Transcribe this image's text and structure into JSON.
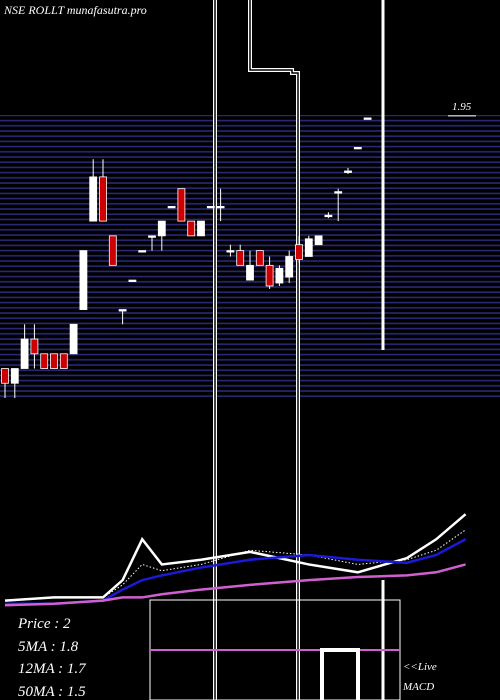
{
  "chart_data": [
    {
      "type": "candlestick",
      "title": "NSE ROLLT munafasutra.pro",
      "x": [
        0,
        1,
        2,
        3,
        4,
        5,
        6,
        7,
        8,
        9,
        10,
        11,
        12,
        13,
        14,
        15,
        16,
        17,
        18,
        19,
        20,
        21,
        22,
        23,
        24,
        25,
        26,
        27,
        28,
        29,
        30,
        31,
        32,
        33,
        34,
        35,
        36,
        37
      ],
      "open": [
        1.1,
        1.05,
        1.1,
        1.2,
        1.15,
        1.15,
        1.15,
        1.15,
        1.3,
        1.6,
        1.75,
        1.55,
        1.3,
        1.4,
        1.5,
        1.55,
        1.55,
        1.65,
        1.71,
        1.6,
        1.55,
        1.65,
        1.65,
        1.5,
        1.5,
        1.4,
        1.5,
        1.45,
        1.39,
        1.41,
        1.52,
        1.48,
        1.52,
        1.62,
        1.7,
        1.77,
        1.85,
        1.95
      ],
      "high": [
        1.1,
        1.1,
        1.25,
        1.25,
        1.15,
        1.15,
        1.15,
        1.25,
        1.5,
        1.81,
        1.81,
        1.55,
        1.3,
        1.4,
        1.5,
        1.55,
        1.6,
        1.65,
        1.71,
        1.6,
        1.6,
        1.65,
        1.71,
        1.52,
        1.52,
        1.5,
        1.5,
        1.48,
        1.45,
        1.5,
        1.55,
        1.55,
        1.55,
        1.63,
        1.71,
        1.78,
        1.85,
        1.95
      ],
      "low": [
        1.0,
        1.0,
        1.1,
        1.1,
        1.1,
        1.1,
        1.1,
        1.15,
        1.3,
        1.6,
        1.6,
        1.45,
        1.25,
        1.4,
        1.5,
        1.5,
        1.5,
        1.65,
        1.6,
        1.55,
        1.55,
        1.65,
        1.6,
        1.48,
        1.45,
        1.4,
        1.45,
        1.37,
        1.38,
        1.39,
        1.46,
        1.48,
        1.52,
        1.61,
        1.6,
        1.76,
        1.85,
        1.95
      ],
      "close": [
        1.05,
        1.1,
        1.2,
        1.15,
        1.1,
        1.1,
        1.1,
        1.25,
        1.5,
        1.75,
        1.6,
        1.45,
        1.3,
        1.4,
        1.5,
        1.55,
        1.6,
        1.65,
        1.6,
        1.55,
        1.6,
        1.65,
        1.65,
        1.5,
        1.45,
        1.45,
        1.45,
        1.38,
        1.44,
        1.48,
        1.47,
        1.54,
        1.55,
        1.62,
        1.7,
        1.77,
        1.85,
        1.95
      ],
      "up_color": "#ffffff",
      "down_color": "#cc0000",
      "ylim": [
        1.0,
        2.35
      ],
      "yticks": [
        1.95
      ]
    },
    {
      "type": "line",
      "x": [
        0,
        5,
        10,
        12,
        14,
        16,
        20,
        25,
        31,
        36,
        41,
        44,
        47
      ],
      "ylim": [
        1.4,
        2.1
      ],
      "series": [
        {
          "color": "#ffffff",
          "values": [
            1.46,
            1.48,
            1.48,
            1.59,
            1.85,
            1.69,
            1.72,
            1.77,
            1.69,
            1.64,
            1.73,
            1.85,
            2.01
          ]
        },
        {
          "color": "#ffffff",
          "dashed": true,
          "values": [
            1.46,
            1.48,
            1.48,
            1.56,
            1.69,
            1.65,
            1.69,
            1.78,
            1.75,
            1.69,
            1.72,
            1.78,
            1.91
          ]
        },
        {
          "color": "#1a1ad8",
          "values": [
            1.44,
            1.44,
            1.46,
            1.53,
            1.59,
            1.62,
            1.67,
            1.72,
            1.75,
            1.72,
            1.7,
            1.75,
            1.85
          ]
        },
        {
          "color": "#d060d0",
          "values": [
            1.43,
            1.44,
            1.46,
            1.48,
            1.48,
            1.5,
            1.53,
            1.56,
            1.59,
            1.61,
            1.62,
            1.64,
            1.69
          ]
        }
      ],
      "annotations": [
        "Price  : 2",
        "5MA : 1.8",
        "12MA : 1.7",
        "50MA : 1.5",
        "<<Live",
        "MACD"
      ]
    }
  ]
}
